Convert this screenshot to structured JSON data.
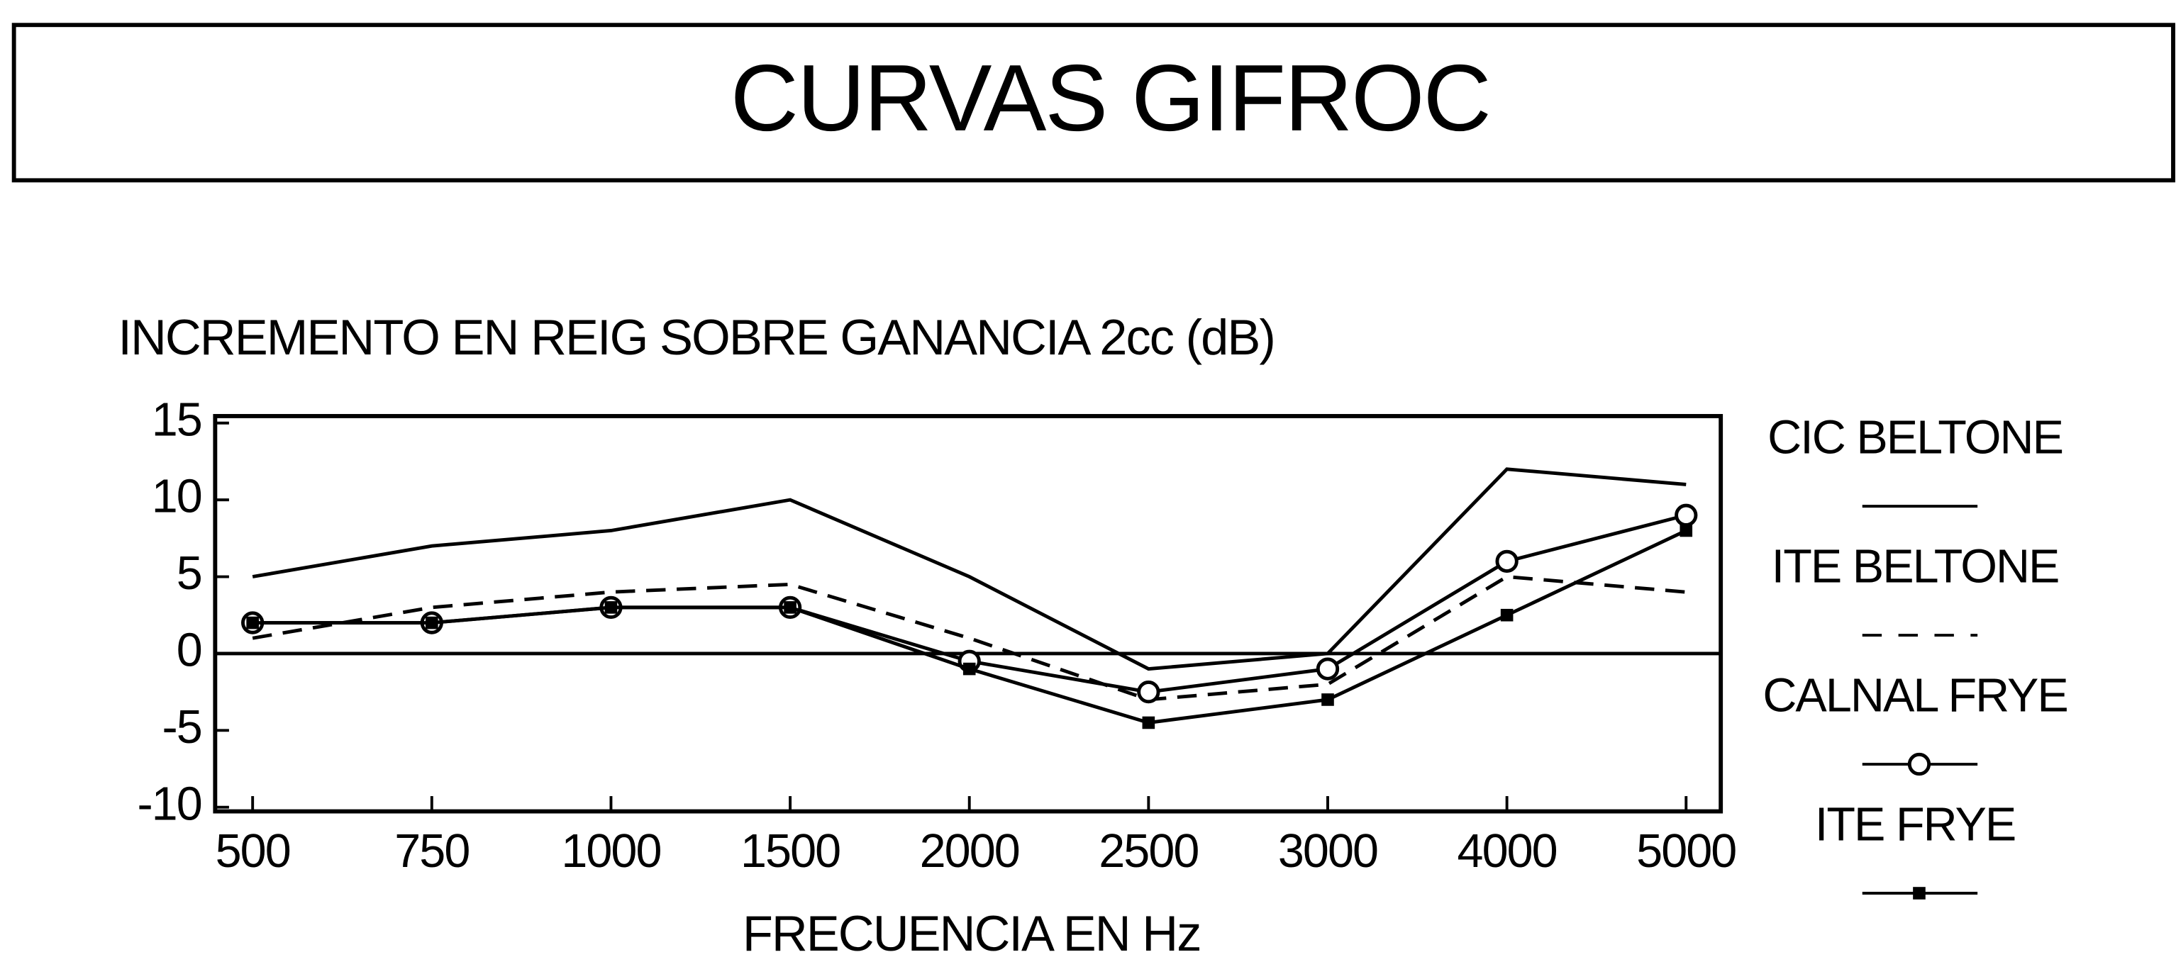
{
  "chart_data": {
    "type": "line",
    "title": "CURVAS GIFROC",
    "y_label": "INCREMENTO EN REIG SOBRE GANANCIA 2cc (dB)",
    "x_label": "FRECUENCIA EN Hz",
    "categories": [
      "500",
      "750",
      "1000",
      "1500",
      "2000",
      "2500",
      "3000",
      "4000",
      "5000"
    ],
    "ylim": [
      -10,
      15
    ],
    "yticks": [
      -10,
      -5,
      0,
      5,
      10,
      15
    ],
    "legend": "right",
    "series": [
      {
        "name": "CIC BELTONE",
        "color": "#000000",
        "line_style": "solid",
        "marker": "none",
        "values": [
          5,
          7,
          8,
          10,
          5,
          -1,
          0,
          12,
          11
        ]
      },
      {
        "name": "ITE BELTONE",
        "color": "#000000",
        "line_style": "dashed",
        "marker": "none",
        "values": [
          1,
          3,
          4,
          4.5,
          1,
          -3,
          -2,
          5,
          4
        ]
      },
      {
        "name": "CALNAL FRYE",
        "color": "#000000",
        "line_style": "solid",
        "marker": "circle",
        "values": [
          2,
          2,
          3,
          3,
          -0.5,
          -2.5,
          -1,
          6,
          9
        ]
      },
      {
        "name": "ITE FRYE",
        "color": "#000000",
        "line_style": "solid",
        "marker": "square",
        "values": [
          2,
          2,
          3,
          3,
          -1,
          -4.5,
          -3,
          2.5,
          8
        ]
      }
    ]
  }
}
